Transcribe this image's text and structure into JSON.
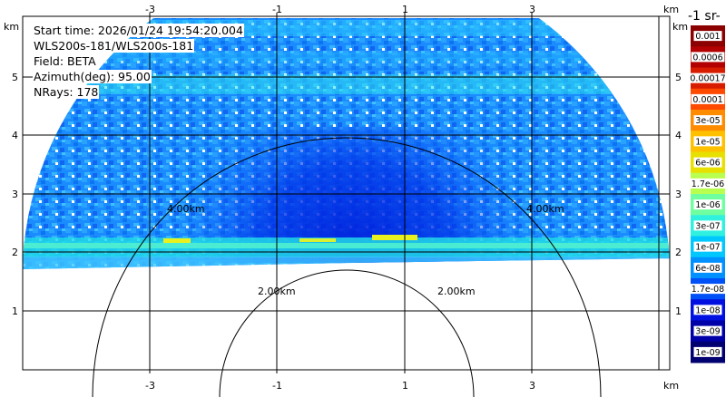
{
  "info": {
    "start_time": "Start time: 2026/01/24 19:54:20.004",
    "instrument": "WLS200s-181/WLS200s-181",
    "field": "Field: BETA",
    "azimuth": "Azimuth(deg): 95.00",
    "nrays": "NRays: 178"
  },
  "axes": {
    "x_unit": "km",
    "y_unit": "km",
    "x_ticks": [
      "-3",
      "-1",
      "1",
      "3"
    ],
    "x_tick_values": [
      -3,
      -1,
      1,
      3
    ],
    "y_ticks": [
      "1",
      "2",
      "3",
      "4",
      "5"
    ],
    "y_tick_values": [
      1,
      2,
      3,
      4,
      5
    ],
    "x_range": [
      -5,
      5.2
    ],
    "y_range": [
      0,
      6
    ]
  },
  "rings": [
    {
      "label": "2.00km",
      "radius_km": 2.0
    },
    {
      "label": "4.00km",
      "radius_km": 4.0
    }
  ],
  "colorbar": {
    "title": "-1 sr-",
    "colors": [
      "#8b0000",
      "#b30000",
      "#d81c00",
      "#ff4a00",
      "#ff8c00",
      "#ffc000",
      "#e8e000",
      "#b8ff50",
      "#70ffa0",
      "#30f0e0",
      "#00c8ff",
      "#0090ff",
      "#0050f8",
      "#0010e0",
      "#0000a8",
      "#000070"
    ],
    "labels": [
      "0.001",
      "0.0006",
      "0.00017",
      "0.0001",
      "3e-05",
      "1e-05",
      "6e-06",
      "1.7e-06",
      "1e-06",
      "3e-07",
      "1e-07",
      "6e-08",
      "1.7e-08",
      "1e-08",
      "3e-09",
      "1e-09"
    ]
  }
}
